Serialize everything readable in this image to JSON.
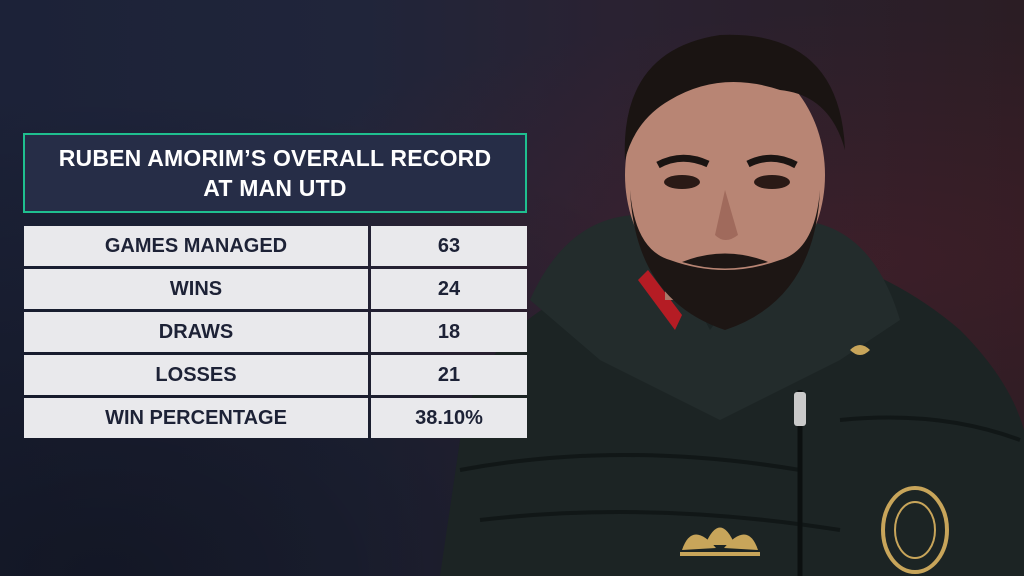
{
  "title": {
    "line1": "RUBEN AMORIM’S OVERALL RECORD",
    "line2": "AT MAN UTD"
  },
  "stats": [
    {
      "label": "GAMES MANAGED",
      "value": "63"
    },
    {
      "label": "WINS",
      "value": "24"
    },
    {
      "label": "DRAWS",
      "value": "18"
    },
    {
      "label": "LOSSES",
      "value": "21"
    },
    {
      "label": "WIN PERCENTAGE",
      "value": "38.10%"
    }
  ],
  "colors": {
    "background": "#20253a",
    "title_border": "#1fbf8f",
    "title_fill": "#262d47",
    "cell_fill": "#e9e9ec",
    "cell_text": "#1d2236"
  },
  "image": {
    "subject": "manager-portrait"
  }
}
